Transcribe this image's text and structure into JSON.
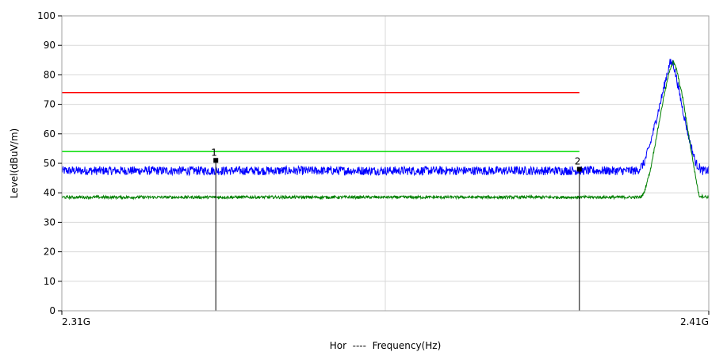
{
  "chart_data": {
    "type": "line",
    "xlabel": "Hor  ----  Frequency(Hz)",
    "ylabel": "Level(dBuV/m)",
    "x_tick_labels": [
      "2.31G",
      "2.41G"
    ],
    "xlim": [
      2.31,
      2.41
    ],
    "x_unit": "GHz",
    "ylim": [
      0,
      100
    ],
    "y_ticks": [
      0,
      10,
      20,
      30,
      40,
      50,
      60,
      70,
      80,
      90,
      100
    ],
    "grid": true,
    "limit_lines": [
      {
        "value": 74,
        "x_start": 2.31,
        "x_end": 2.39,
        "color": "#ff0000"
      },
      {
        "value": 54,
        "x_start": 2.31,
        "x_end": 2.39,
        "color": "#00dd00"
      }
    ],
    "series": [
      {
        "color": "#0000ff",
        "noise": 1.5,
        "points": [
          [
            2.31,
            47.5
          ],
          [
            2.399,
            47.5
          ],
          [
            2.4,
            50
          ],
          [
            2.401,
            57
          ],
          [
            2.402,
            66
          ],
          [
            2.403,
            75
          ],
          [
            2.4035,
            80
          ],
          [
            2.404,
            84
          ],
          [
            2.4045,
            84
          ],
          [
            2.405,
            79
          ],
          [
            2.406,
            68
          ],
          [
            2.407,
            58
          ],
          [
            2.408,
            50
          ],
          [
            2.409,
            47.5
          ],
          [
            2.41,
            47.5
          ]
        ]
      },
      {
        "color": "#008000",
        "noise": 0.5,
        "points": [
          [
            2.31,
            38.5
          ],
          [
            2.3995,
            38.5
          ],
          [
            2.4,
            40
          ],
          [
            2.401,
            48
          ],
          [
            2.402,
            60
          ],
          [
            2.403,
            72
          ],
          [
            2.404,
            82
          ],
          [
            2.4045,
            84.5
          ],
          [
            2.405,
            82
          ],
          [
            2.406,
            72
          ],
          [
            2.407,
            58
          ],
          [
            2.408,
            45
          ],
          [
            2.4085,
            39
          ],
          [
            2.41,
            38.5
          ]
        ]
      }
    ],
    "markers": [
      {
        "label": "1",
        "x": 2.3338,
        "y": 51
      },
      {
        "label": "2",
        "x": 2.39,
        "y": 48
      }
    ]
  }
}
